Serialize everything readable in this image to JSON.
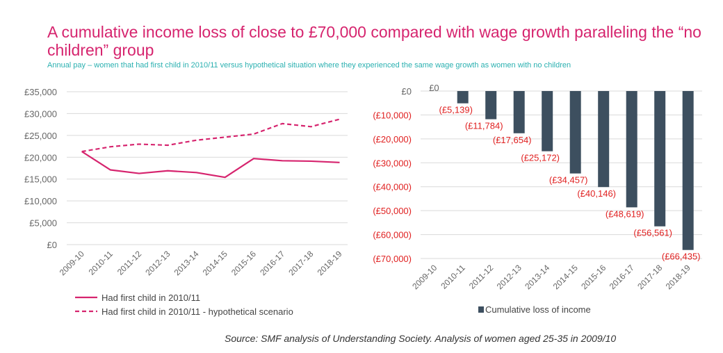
{
  "title": "A cumulative income loss of close to £70,000 compared with wage growth paralleling the “no children” group",
  "subtitle": "Annual pay – women that had first child in 2010/11 versus hypothetical situation where they experienced the same wage growth as women with no children",
  "source": "Source: SMF analysis of Understanding Society.  Analysis of women aged 25-35 in 2009/10",
  "colors": {
    "pink": "#d6246e",
    "teal": "#2ab0b0",
    "bar": "#3d4f5f",
    "neg": "#e02020",
    "grid": "#d9d9d9"
  },
  "chart_data": [
    {
      "type": "line",
      "categories": [
        "2009-10",
        "2010-11",
        "2011-12",
        "2012-13",
        "2013-14",
        "2014-15",
        "2015-16",
        "2016-17",
        "2017-18",
        "2018-19"
      ],
      "ylim": [
        0,
        35000
      ],
      "yticks": [
        0,
        5000,
        10000,
        15000,
        20000,
        25000,
        30000,
        35000
      ],
      "ytick_labels": [
        "£0",
        "£5,000",
        "£10,000",
        "£15,000",
        "£20,000",
        "£25,000",
        "£30,000",
        "£35,000"
      ],
      "grid": true,
      "series": [
        {
          "name": "Had first child in 2010/11",
          "style": "solid",
          "values": [
            21300,
            17100,
            16300,
            16900,
            16500,
            15400,
            19700,
            19200,
            19100,
            18800
          ]
        },
        {
          "name": "Had first child in 2010/11 - hypothetical scenario",
          "style": "dashed",
          "values": [
            21300,
            22400,
            23000,
            22750,
            23900,
            24600,
            25300,
            27700,
            27000,
            28700
          ]
        }
      ],
      "legend": "bottom-left"
    },
    {
      "type": "bar",
      "categories": [
        "2009-10",
        "2010-11",
        "2011-12",
        "2012-13",
        "2013-14",
        "2014-15",
        "2015-16",
        "2016-17",
        "2017-18",
        "2018-19"
      ],
      "values": [
        0,
        -5139,
        -11784,
        -17654,
        -25172,
        -34457,
        -40146,
        -48619,
        -56561,
        -66435
      ],
      "data_labels": [
        "£0",
        "(£5,139)",
        "(£11,784)",
        "(£17,654)",
        "(£25,172)",
        "(£34,457)",
        "(£40,146)",
        "(£48,619)",
        "(£56,561)",
        "(£66,435)"
      ],
      "ylim": [
        -70000,
        0
      ],
      "yticks": [
        0,
        -10000,
        -20000,
        -30000,
        -40000,
        -50000,
        -60000,
        -70000
      ],
      "ytick_labels": [
        "£0",
        "(£10,000)",
        "(£20,000)",
        "(£30,000)",
        "(£40,000)",
        "(£50,000)",
        "(£60,000)",
        "(£70,000)"
      ],
      "grid": true,
      "series_name": "Cumulative loss of income",
      "legend": "bottom-center"
    }
  ]
}
